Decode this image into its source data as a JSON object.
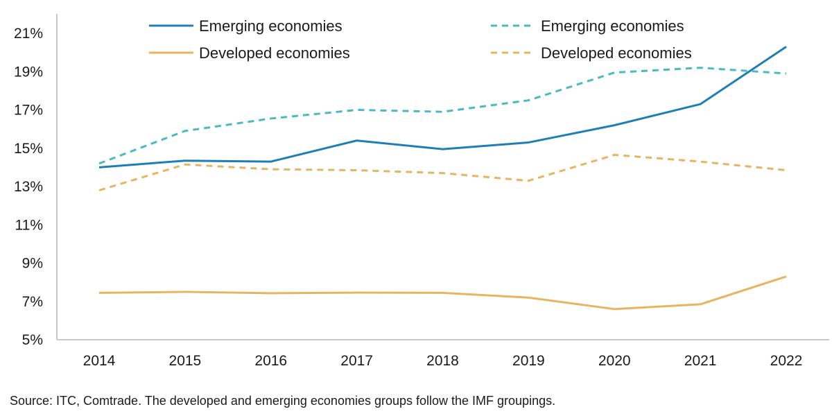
{
  "chart_data": {
    "type": "line",
    "categories": [
      "2014",
      "2015",
      "2016",
      "2017",
      "2018",
      "2019",
      "2020",
      "2021",
      "2022"
    ],
    "ylim": [
      5,
      21
    ],
    "yticks": [
      "5%",
      "7%",
      "9%",
      "11%",
      "13%",
      "15%",
      "17%",
      "19%",
      "21%"
    ],
    "ytick_values": [
      5,
      7,
      9,
      11,
      13,
      15,
      17,
      19,
      21
    ],
    "grid": false,
    "legend_position": "top",
    "series": [
      {
        "name": "Emerging economies",
        "color": "#1f7fb4",
        "dash": "solid",
        "values": [
          14.0,
          14.35,
          14.3,
          15.4,
          14.95,
          15.3,
          16.2,
          17.3,
          20.3
        ]
      },
      {
        "name": "Emerging economies",
        "color": "#4bb9c4",
        "dash": "dashed",
        "values": [
          14.2,
          15.9,
          16.55,
          17.0,
          16.9,
          17.5,
          18.95,
          19.2,
          18.9
        ]
      },
      {
        "name": "Developed economies",
        "color": "#e8b460",
        "dash": "solid",
        "values": [
          7.45,
          7.5,
          7.43,
          7.46,
          7.45,
          7.2,
          6.6,
          6.85,
          8.3
        ]
      },
      {
        "name": "Developed economies",
        "color": "#e8b460",
        "dash": "dashed",
        "values": [
          12.8,
          14.15,
          13.9,
          13.85,
          13.7,
          13.3,
          14.65,
          14.3,
          13.85
        ]
      }
    ]
  },
  "source": "Source: ITC, Comtrade. The developed and emerging economies groups follow the IMF groupings."
}
